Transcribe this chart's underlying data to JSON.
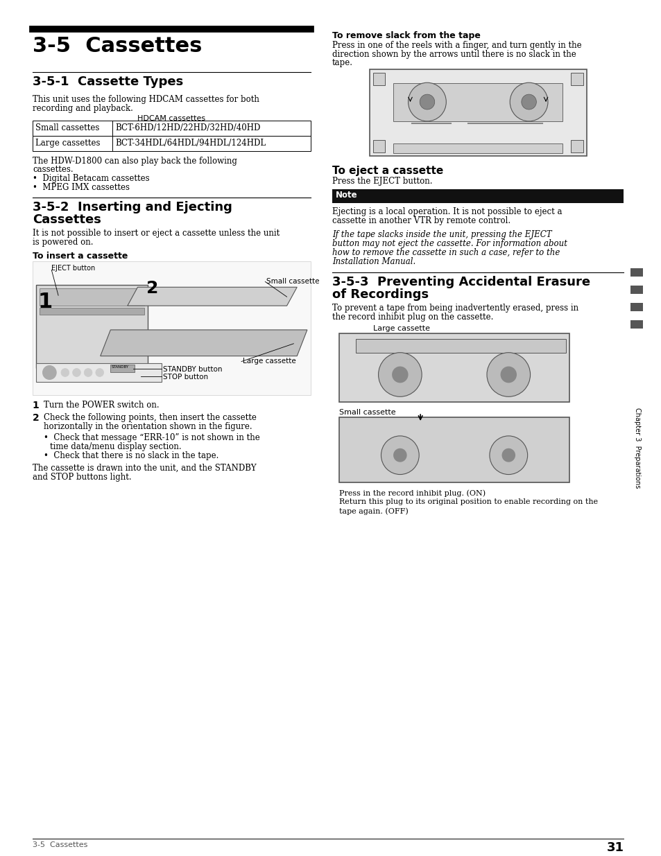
{
  "page_bg": "#ffffff",
  "main_title": "3-5  Cassettes",
  "s1_title": "3-5-1  Cassette Types",
  "s1_body1": "This unit uses the following HDCAM cassettes for both",
  "s1_body2": "recording and playback.",
  "table_caption": "HDCAM cassettes",
  "table_col1": [
    "Small cassettes",
    "Large cassettes"
  ],
  "table_col2": [
    "BCT-6HD/12HD/22HD/32HD/40HD",
    "BCT-34HDL/64HDL/94HDL/124HDL"
  ],
  "s1_extra": [
    "The HDW-D1800 can also play back the following",
    "cassettes.",
    "•  Digital Betacam cassettes",
    "•  MPEG IMX cassettes"
  ],
  "s2_title1": "3-5-2  Inserting and Ejecting",
  "s2_title2": "Cassettes",
  "s2_body1": "It is not possible to insert or eject a cassette unless the unit",
  "s2_body2": "is powered on.",
  "insert_label": "To insert a cassette",
  "eject_btn": "EJECT button",
  "num1": "1",
  "num2": "2",
  "small_cas": "Small cassette",
  "large_cas": "Large cassette",
  "standby_btn": "STANDBY button",
  "stop_btn": "STOP button",
  "step1_num": "1",
  "step1": "Turn the POWER switch on.",
  "step2_num": "2",
  "step2_l1": "Check the following points, then insert the cassette",
  "step2_l2": "horizontally in the orientation shown in the figure.",
  "step2_b1_l1": "•  Check that message “ERR-10” is not shown in the",
  "step2_b1_l2": "time data/menu display section.",
  "step2_b2": "•  Check that there is no slack in the tape.",
  "step2_extra1": "The cassette is drawn into the unit, and the STANDBY",
  "step2_extra2": "and STOP buttons light.",
  "r_slack_title": "To remove slack from the tape",
  "r_slack_l1": "Press in one of the reels with a finger, and turn gently in the",
  "r_slack_l2": "direction shown by the arrows until there is no slack in the",
  "r_slack_l3": "tape.",
  "eject_title": "To eject a cassette",
  "eject_body": "Press the EJECT button.",
  "note_label": "Note",
  "note_l1": "Ejecting is a local operation. It is not possible to eject a",
  "note_l2": "cassette in another VTR by remote control.",
  "italic_l1": "If the tape slacks inside the unit, pressing the EJECT",
  "italic_l2": "button may not eject the cassette. For information about",
  "italic_l3": "how to remove the cassette in such a case, refer to the",
  "italic_l4": "Installation Manual.",
  "s3_title1": "3-5-3  Preventing Accidental Erasure",
  "s3_title2": "of Recordings",
  "s3_body1": "To prevent a tape from being inadvertently erased, press in",
  "s3_body2": "the record inhibit plug on the cassette.",
  "lc_label": "Large cassette",
  "sc_label": "Small cassette",
  "cap1": "Press in the record inhibit plug. (ON)",
  "cap2": "Return this plug to its original position to enable recording on the",
  "cap3": "tape again. (OFF)",
  "footer_l": "3-5  Cassettes",
  "footer_r": "31",
  "sidebar": "Chapter 3  Preparations"
}
